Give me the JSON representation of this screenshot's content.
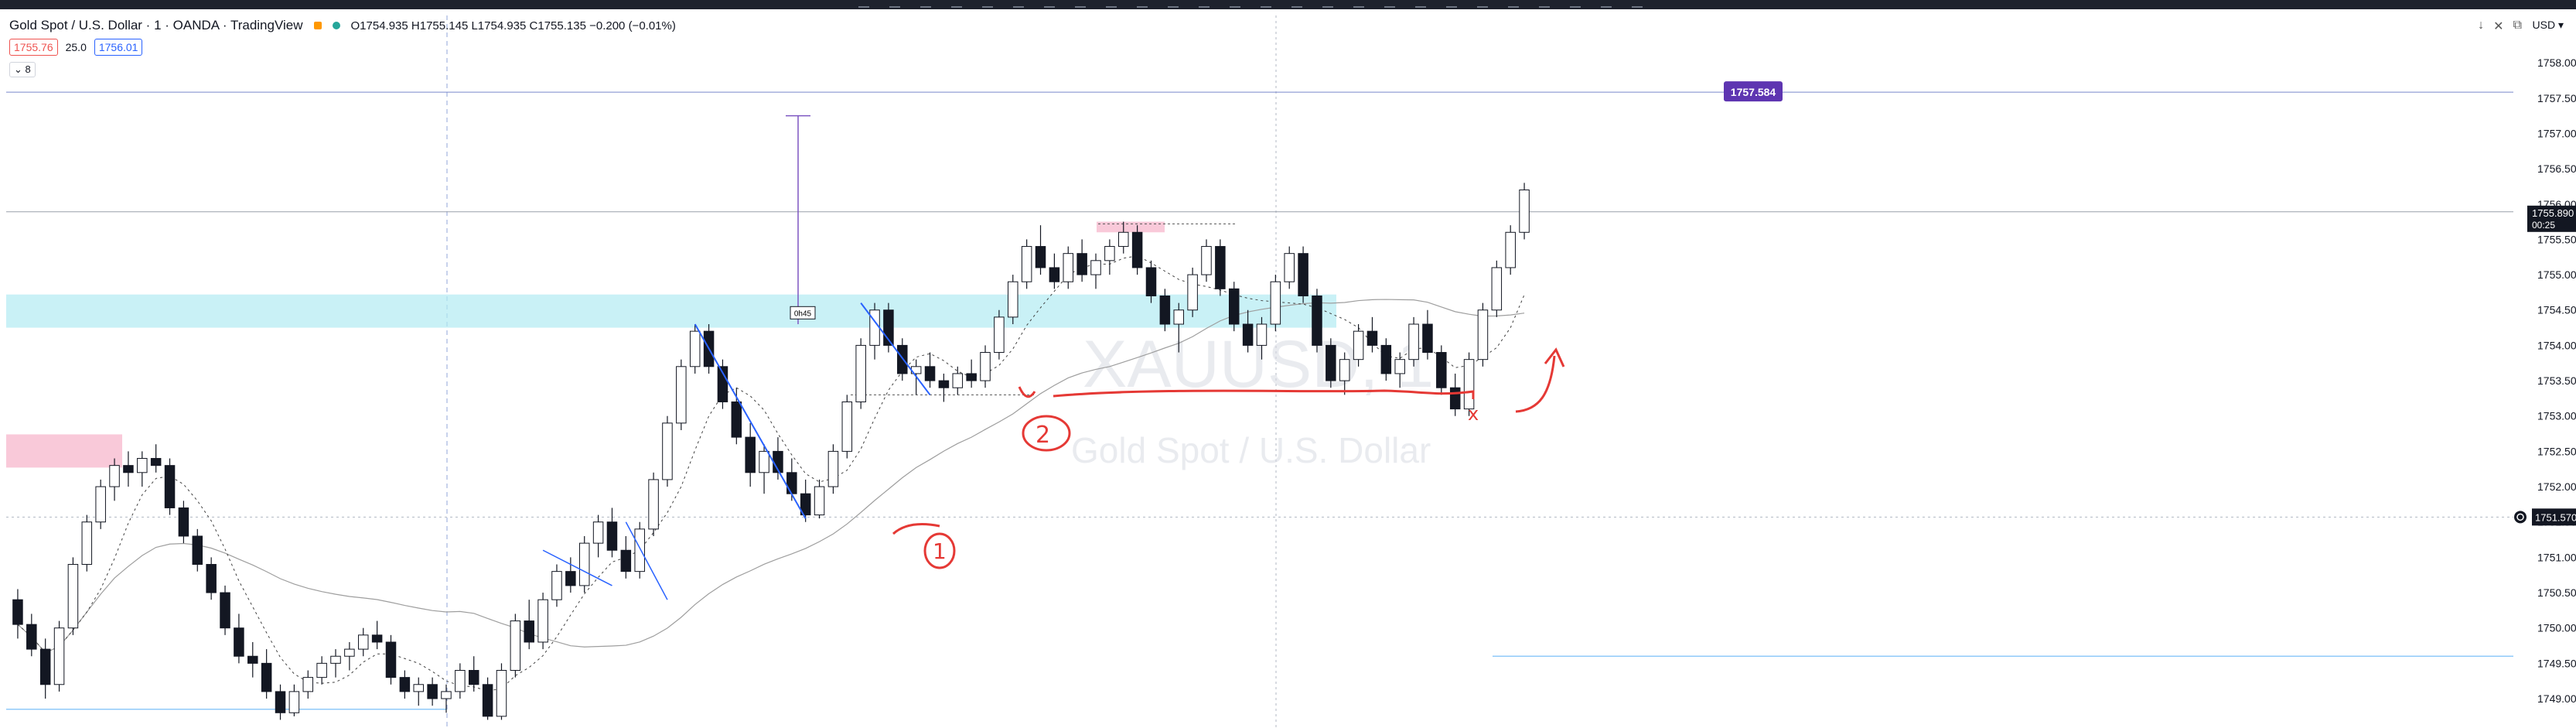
{
  "header": {
    "title": "Gold Spot / U.S. Dollar · 1 · OANDA · TradingView",
    "ohlc": "O1754.935 H1755.145 L1754.935 C1755.135 −0.200 (−0.01%)",
    "bid": "1755.76",
    "spread": "25.0",
    "ask": "1756.01",
    "indicator_toggle": "⌄ 8",
    "currency": "USD ▾"
  },
  "icons": [
    "arrow-down-icon",
    "close-icon",
    "window-icon"
  ],
  "colors": {
    "up": "#ffffff",
    "down": "#131722",
    "wick": "#131722",
    "zone_blue": "#b2ebf2",
    "zone_pink": "#f8bbd0",
    "purple_tag": "#5e35b1",
    "blue_line": "#2962ff",
    "red_ink": "#e53935"
  },
  "chart_data": {
    "type": "candlestick",
    "symbol": "XAUUSD, 1",
    "watermark_subtitle": "Gold Spot / U.S. Dollar",
    "ylim": [
      1748.65,
      1758.45
    ],
    "yticks": [
      1758.0,
      1757.5,
      1757.0,
      1756.5,
      1756.0,
      1755.5,
      1755.0,
      1754.5,
      1754.0,
      1753.5,
      1753.0,
      1752.5,
      1752.0,
      1751.5,
      1751.0,
      1750.5,
      1750.0,
      1749.5,
      1749.0,
      1748.5
    ],
    "ytick_labels": [
      "1758.000",
      "1757.500",
      "1757.000",
      "1756.500",
      "1756.000",
      "1755.500",
      "1755.000",
      "1754.500",
      "1754.000",
      "1753.500",
      "1753.000",
      "1752.500",
      "1752.000",
      "1751.500",
      "1751.000",
      "1750.500",
      "1750.000",
      "1749.500",
      "1749.000",
      "1748.500"
    ],
    "current_price": 1755.89,
    "current_price_label": "1755.890",
    "countdown": "00:25",
    "crosshair_price": 1751.57,
    "crosshair_price_label": "1751.570",
    "horizontal_level": 1757.584,
    "horizontal_level_label": "1757.584",
    "lower_level": 1749.6,
    "bottom_level": 1748.85,
    "blue_zone": [
      1754.25,
      1754.72
    ],
    "left_pink_zone": [
      1752.27,
      1752.74
    ],
    "right_pink_zone": [
      1755.6,
      1755.75
    ],
    "measure_label": "0h45",
    "annotations": [
      "1",
      "2",
      "x"
    ],
    "candles": [
      [
        1750.4,
        1750.55,
        1749.85,
        1750.05
      ],
      [
        1750.05,
        1750.2,
        1749.6,
        1749.7
      ],
      [
        1749.7,
        1749.85,
        1749.0,
        1749.2
      ],
      [
        1749.2,
        1750.1,
        1749.1,
        1750.0
      ],
      [
        1750.0,
        1751.0,
        1749.9,
        1750.9
      ],
      [
        1750.9,
        1751.6,
        1750.8,
        1751.5
      ],
      [
        1751.5,
        1752.1,
        1751.4,
        1752.0
      ],
      [
        1752.0,
        1752.4,
        1751.8,
        1752.3
      ],
      [
        1752.3,
        1752.5,
        1752.0,
        1752.2
      ],
      [
        1752.2,
        1752.5,
        1752.0,
        1752.4
      ],
      [
        1752.4,
        1752.6,
        1752.2,
        1752.3
      ],
      [
        1752.3,
        1752.4,
        1751.6,
        1751.7
      ],
      [
        1751.7,
        1751.8,
        1751.2,
        1751.3
      ],
      [
        1751.3,
        1751.4,
        1750.8,
        1750.9
      ],
      [
        1750.9,
        1751.0,
        1750.4,
        1750.5
      ],
      [
        1750.5,
        1750.6,
        1749.9,
        1750.0
      ],
      [
        1750.0,
        1750.2,
        1749.5,
        1749.6
      ],
      [
        1749.6,
        1749.8,
        1749.3,
        1749.5
      ],
      [
        1749.5,
        1749.7,
        1749.0,
        1749.1
      ],
      [
        1749.1,
        1749.2,
        1748.7,
        1748.8
      ],
      [
        1748.8,
        1749.2,
        1748.75,
        1749.1
      ],
      [
        1749.1,
        1749.4,
        1749.0,
        1749.3
      ],
      [
        1749.3,
        1749.6,
        1749.2,
        1749.5
      ],
      [
        1749.5,
        1749.7,
        1749.3,
        1749.6
      ],
      [
        1749.6,
        1749.8,
        1749.4,
        1749.7
      ],
      [
        1749.7,
        1750.0,
        1749.6,
        1749.9
      ],
      [
        1749.9,
        1750.1,
        1749.7,
        1749.8
      ],
      [
        1749.8,
        1749.9,
        1749.2,
        1749.3
      ],
      [
        1749.3,
        1749.4,
        1749.0,
        1749.1
      ],
      [
        1749.1,
        1749.3,
        1748.9,
        1749.2
      ],
      [
        1749.2,
        1749.3,
        1748.9,
        1749.0
      ],
      [
        1749.0,
        1749.2,
        1748.8,
        1749.1
      ],
      [
        1749.1,
        1749.5,
        1749.0,
        1749.4
      ],
      [
        1749.4,
        1749.6,
        1749.1,
        1749.2
      ],
      [
        1749.2,
        1749.3,
        1748.7,
        1748.75
      ],
      [
        1748.75,
        1749.5,
        1748.7,
        1749.4
      ],
      [
        1749.4,
        1750.2,
        1749.3,
        1750.1
      ],
      [
        1750.1,
        1750.4,
        1749.7,
        1749.8
      ],
      [
        1749.8,
        1750.5,
        1749.7,
        1750.4
      ],
      [
        1750.4,
        1750.9,
        1750.3,
        1750.8
      ],
      [
        1750.8,
        1751.0,
        1750.5,
        1750.6
      ],
      [
        1750.6,
        1751.3,
        1750.5,
        1751.2
      ],
      [
        1751.2,
        1751.6,
        1751.0,
        1751.5
      ],
      [
        1751.5,
        1751.7,
        1751.0,
        1751.1
      ],
      [
        1751.1,
        1751.3,
        1750.7,
        1750.8
      ],
      [
        1750.8,
        1751.5,
        1750.7,
        1751.4
      ],
      [
        1751.4,
        1752.2,
        1751.3,
        1752.1
      ],
      [
        1752.1,
        1753.0,
        1752.0,
        1752.9
      ],
      [
        1752.9,
        1753.8,
        1752.8,
        1753.7
      ],
      [
        1753.7,
        1754.3,
        1753.6,
        1754.2
      ],
      [
        1754.2,
        1754.3,
        1753.6,
        1753.7
      ],
      [
        1753.7,
        1753.8,
        1753.1,
        1753.2
      ],
      [
        1753.2,
        1753.4,
        1752.6,
        1752.7
      ],
      [
        1752.7,
        1752.9,
        1752.0,
        1752.2
      ],
      [
        1752.2,
        1752.6,
        1751.9,
        1752.5
      ],
      [
        1752.5,
        1752.7,
        1752.1,
        1752.2
      ],
      [
        1752.2,
        1752.4,
        1751.8,
        1751.9
      ],
      [
        1751.9,
        1752.1,
        1751.5,
        1751.6
      ],
      [
        1751.6,
        1752.1,
        1751.55,
        1752.0
      ],
      [
        1752.0,
        1752.6,
        1751.9,
        1752.5
      ],
      [
        1752.5,
        1753.3,
        1752.4,
        1753.2
      ],
      [
        1753.2,
        1754.1,
        1753.1,
        1754.0
      ],
      [
        1754.0,
        1754.6,
        1753.8,
        1754.5
      ],
      [
        1754.5,
        1754.6,
        1753.9,
        1754.0
      ],
      [
        1754.0,
        1754.1,
        1753.5,
        1753.6
      ],
      [
        1753.6,
        1753.8,
        1753.3,
        1753.7
      ],
      [
        1753.7,
        1753.9,
        1753.4,
        1753.5
      ],
      [
        1753.5,
        1753.6,
        1753.2,
        1753.4
      ],
      [
        1753.4,
        1753.7,
        1753.3,
        1753.6
      ],
      [
        1753.6,
        1753.8,
        1753.4,
        1753.5
      ],
      [
        1753.5,
        1754.0,
        1753.4,
        1753.9
      ],
      [
        1753.9,
        1754.5,
        1753.8,
        1754.4
      ],
      [
        1754.4,
        1755.0,
        1754.3,
        1754.9
      ],
      [
        1754.9,
        1755.5,
        1754.8,
        1755.4
      ],
      [
        1755.4,
        1755.7,
        1755.0,
        1755.1
      ],
      [
        1755.1,
        1755.3,
        1754.8,
        1754.9
      ],
      [
        1754.9,
        1755.4,
        1754.8,
        1755.3
      ],
      [
        1755.3,
        1755.5,
        1754.9,
        1755.0
      ],
      [
        1755.0,
        1755.3,
        1754.8,
        1755.2
      ],
      [
        1755.2,
        1755.5,
        1755.0,
        1755.4
      ],
      [
        1755.4,
        1755.75,
        1755.3,
        1755.6
      ],
      [
        1755.6,
        1755.7,
        1755.0,
        1755.1
      ],
      [
        1755.1,
        1755.2,
        1754.6,
        1754.7
      ],
      [
        1754.7,
        1754.8,
        1754.2,
        1754.3
      ],
      [
        1754.3,
        1754.6,
        1753.9,
        1754.5
      ],
      [
        1754.5,
        1755.1,
        1754.4,
        1755.0
      ],
      [
        1755.0,
        1755.5,
        1754.9,
        1755.4
      ],
      [
        1755.4,
        1755.5,
        1754.7,
        1754.8
      ],
      [
        1754.8,
        1754.9,
        1754.2,
        1754.3
      ],
      [
        1754.3,
        1754.5,
        1753.9,
        1754.0
      ],
      [
        1754.0,
        1754.4,
        1753.8,
        1754.3
      ],
      [
        1754.3,
        1755.0,
        1754.2,
        1754.9
      ],
      [
        1754.9,
        1755.4,
        1754.8,
        1755.3
      ],
      [
        1755.3,
        1755.4,
        1754.6,
        1754.7
      ],
      [
        1754.7,
        1754.8,
        1753.9,
        1754.0
      ],
      [
        1754.0,
        1754.1,
        1753.4,
        1753.5
      ],
      [
        1753.5,
        1753.9,
        1753.3,
        1753.8
      ],
      [
        1753.8,
        1754.3,
        1753.7,
        1754.2
      ],
      [
        1754.2,
        1754.4,
        1753.9,
        1754.0
      ],
      [
        1754.0,
        1754.1,
        1753.5,
        1753.6
      ],
      [
        1753.6,
        1753.9,
        1753.4,
        1753.8
      ],
      [
        1753.8,
        1754.4,
        1753.7,
        1754.3
      ],
      [
        1754.3,
        1754.5,
        1753.8,
        1753.9
      ],
      [
        1753.9,
        1754.0,
        1753.3,
        1753.4
      ],
      [
        1753.4,
        1753.6,
        1753.0,
        1753.1
      ],
      [
        1753.1,
        1753.9,
        1753.0,
        1753.8
      ],
      [
        1753.8,
        1754.6,
        1753.7,
        1754.5
      ],
      [
        1754.5,
        1755.2,
        1754.4,
        1755.1
      ],
      [
        1755.1,
        1755.7,
        1755.0,
        1755.6
      ],
      [
        1755.6,
        1756.3,
        1755.5,
        1756.2
      ]
    ]
  }
}
